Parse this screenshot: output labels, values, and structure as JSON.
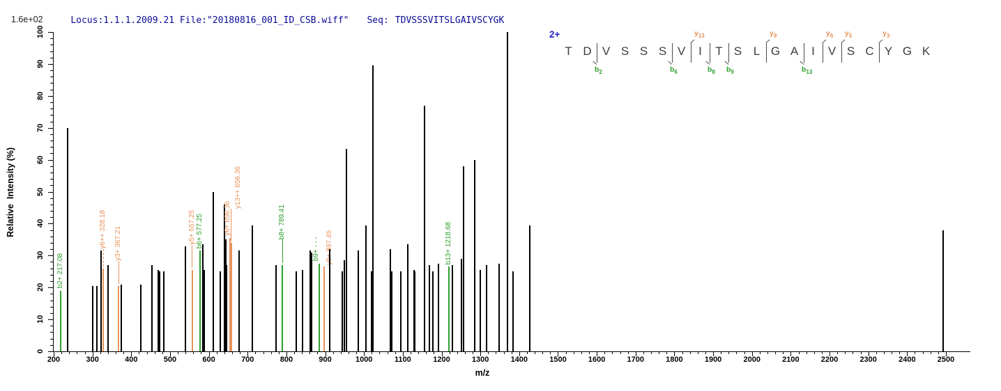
{
  "header": {
    "locus_file": "Locus:1.1.1.2009.21 File:\"20180816_001_ID_CSB.wiff\"",
    "seq_label": "Seq:",
    "seq_value": "TDVSSSVITSLGAIVSCYGK"
  },
  "sequence_panel": {
    "charge": "2+",
    "residues": [
      "T",
      "D",
      "V",
      "S",
      "S",
      "S",
      "V",
      "I",
      "T",
      "S",
      "L",
      "G",
      "A",
      "I",
      "V",
      "S",
      "C",
      "Y",
      "G",
      "K"
    ],
    "markers": [
      {
        "type": "b",
        "num": "2",
        "gap": 2
      },
      {
        "type": "b",
        "num": "6",
        "gap": 6
      },
      {
        "type": "y",
        "num": "13",
        "gap": 7
      },
      {
        "type": "b",
        "num": "8",
        "gap": 8
      },
      {
        "type": "b",
        "num": "9",
        "gap": 9
      },
      {
        "type": "y",
        "num": "9",
        "gap": 11
      },
      {
        "type": "b",
        "num": "13",
        "gap": 13
      },
      {
        "type": "y",
        "num": "6",
        "gap": 14
      },
      {
        "type": "y",
        "num": "5",
        "gap": 15
      },
      {
        "type": "y",
        "num": "3",
        "gap": 17
      }
    ]
  },
  "chart_data": {
    "type": "bar",
    "title": "",
    "xlabel": "m/z",
    "ylabel": "Relative  Intensity (%)",
    "max_intensity_label": "1.6e+02",
    "xlim": [
      200,
      2500
    ],
    "ylim": [
      0,
      100
    ],
    "x_major_tick": 100,
    "x_minor_tick": 20,
    "y_major_tick": 10,
    "y_minor_tick": 2,
    "grid": false,
    "peaks": [
      {
        "mz": 217.08,
        "intensity": 19,
        "series": "b",
        "label": "b2+ 217.08"
      },
      {
        "mz": 236,
        "intensity": 70
      },
      {
        "mz": 300,
        "intensity": 20.5
      },
      {
        "mz": 312,
        "intensity": 20.5
      },
      {
        "mz": 322,
        "intensity": 31.5
      },
      {
        "mz": 328.18,
        "intensity": 26,
        "series": "y",
        "label": "y6++ 328.18",
        "leader": "dashed",
        "leader_len": 25
      },
      {
        "mz": 341,
        "intensity": 27
      },
      {
        "mz": 367.21,
        "intensity": 20.5,
        "series": "y",
        "label": "y3+ 367.21",
        "leader": "solid",
        "leader_len": 33
      },
      {
        "mz": 374,
        "intensity": 21
      },
      {
        "mz": 424,
        "intensity": 21
      },
      {
        "mz": 453,
        "intensity": 27
      },
      {
        "mz": 470,
        "intensity": 25.5
      },
      {
        "mz": 474,
        "intensity": 25
      },
      {
        "mz": 484,
        "intensity": 25
      },
      {
        "mz": 540,
        "intensity": 33
      },
      {
        "mz": 557.25,
        "intensity": 25.5,
        "series": "y",
        "label": "y5+ 557.25",
        "leader": "solid",
        "leader_len": 33
      },
      {
        "mz": 577.25,
        "intensity": 31.5,
        "series": "b",
        "label": "b6+ 577.25"
      },
      {
        "mz": 585,
        "intensity": 33.5
      },
      {
        "mz": 588,
        "intensity": 25.5
      },
      {
        "mz": 612,
        "intensity": 50
      },
      {
        "mz": 630,
        "intensity": 25
      },
      {
        "mz": 640,
        "intensity": 46
      },
      {
        "mz": 643,
        "intensity": 35
      },
      {
        "mz": 646,
        "intensity": 27
      },
      {
        "mz": 654,
        "intensity": 35.5,
        "series": "y",
        "label": "y6+ 656.36",
        "label_dx": -9
      },
      {
        "mz": 658,
        "intensity": 34,
        "series": "y",
        "label": "y13++ 656.36",
        "label_dx": 4,
        "leader": "solid",
        "leader_len": 46
      },
      {
        "mz": 678,
        "intensity": 31.5
      },
      {
        "mz": 713,
        "intensity": 39.5
      },
      {
        "mz": 774,
        "intensity": 27
      },
      {
        "mz": 789.41,
        "intensity": 27,
        "series": "b",
        "label": "b8+ 789.41",
        "leader": "solid",
        "leader_len": 34
      },
      {
        "mz": 825,
        "intensity": 25
      },
      {
        "mz": 841,
        "intensity": 25.5
      },
      {
        "mz": 861,
        "intensity": 31.5
      },
      {
        "mz": 864,
        "intensity": 31
      },
      {
        "mz": 885,
        "intensity": 27.5,
        "series": "b",
        "label": "b9+ - - -",
        "label_dx": -10
      },
      {
        "mz": 897.45,
        "intensity": 26.5,
        "series": "y",
        "label": "y9+ 897.45",
        "label_dx": 2
      },
      {
        "mz": 911,
        "intensity": 32
      },
      {
        "mz": 944,
        "intensity": 25
      },
      {
        "mz": 950,
        "intensity": 28.5
      },
      {
        "mz": 955,
        "intensity": 63.5
      },
      {
        "mz": 986,
        "intensity": 31.5
      },
      {
        "mz": 1005,
        "intensity": 39.5
      },
      {
        "mz": 1019,
        "intensity": 25
      },
      {
        "mz": 1023,
        "intensity": 89.5
      },
      {
        "mz": 1068,
        "intensity": 32
      },
      {
        "mz": 1072,
        "intensity": 25
      },
      {
        "mz": 1095,
        "intensity": 25
      },
      {
        "mz": 1113,
        "intensity": 33.5
      },
      {
        "mz": 1129,
        "intensity": 25.5
      },
      {
        "mz": 1131,
        "intensity": 25
      },
      {
        "mz": 1156,
        "intensity": 77
      },
      {
        "mz": 1168,
        "intensity": 27
      },
      {
        "mz": 1177,
        "intensity": 25
      },
      {
        "mz": 1191,
        "intensity": 27.5
      },
      {
        "mz": 1218.68,
        "intensity": 26.5,
        "series": "b",
        "label": "b13+ 1218.68"
      },
      {
        "mz": 1227,
        "intensity": 27
      },
      {
        "mz": 1252,
        "intensity": 29
      },
      {
        "mz": 1257,
        "intensity": 58
      },
      {
        "mz": 1285,
        "intensity": 60
      },
      {
        "mz": 1300,
        "intensity": 25.5
      },
      {
        "mz": 1315,
        "intensity": 27
      },
      {
        "mz": 1349,
        "intensity": 27.5
      },
      {
        "mz": 1370,
        "intensity": 100
      },
      {
        "mz": 1384,
        "intensity": 25
      },
      {
        "mz": 1427,
        "intensity": 39.5
      },
      {
        "mz": 2493,
        "intensity": 38
      }
    ]
  },
  "colors": {
    "header_text": "#0A0A96",
    "charge": "#2020CC",
    "b_ion": "#2E9E2E",
    "y_ion": "#E8935C",
    "peak": "#000000",
    "residue": "#3C3C3C",
    "axis": "#000000"
  }
}
